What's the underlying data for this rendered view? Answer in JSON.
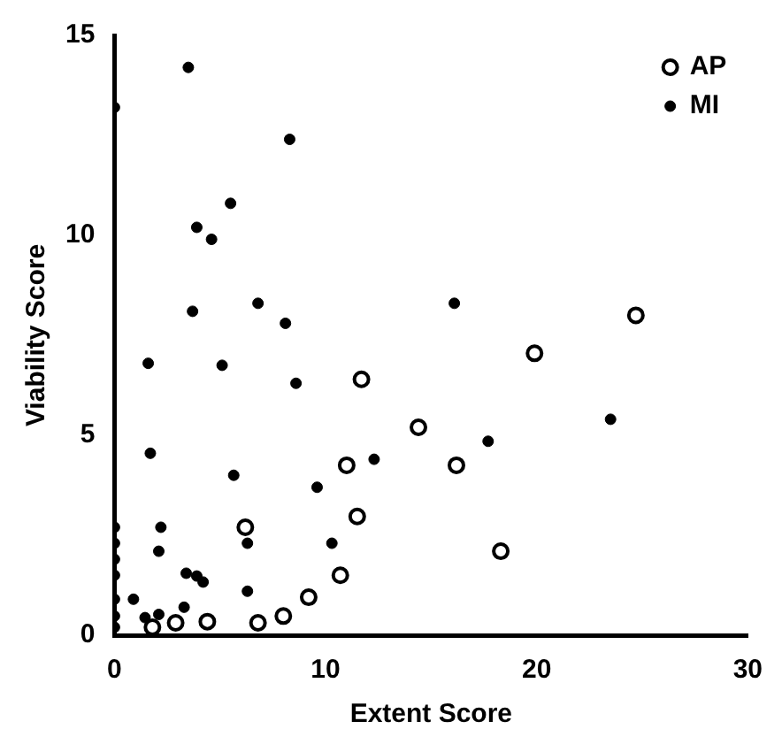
{
  "chart_data": {
    "type": "scatter",
    "xlabel": "Extent Score",
    "ylabel": "Viability Score",
    "xlim": [
      0,
      30
    ],
    "xticks": [
      0,
      10,
      20,
      30
    ],
    "ylim": [
      0,
      15
    ],
    "yticks": [
      0,
      5,
      10,
      15
    ],
    "grid": false,
    "legend": "top right",
    "marker": "circle",
    "series": [
      {
        "name": "AP",
        "color": "#000000",
        "x": [
          24.7,
          19.9,
          11.7,
          14.4,
          11.0,
          16.2,
          11.5,
          6.2,
          18.3,
          10.7,
          9.2,
          8.0,
          6.8,
          4.4,
          2.9,
          1.8
        ],
        "values": [
          8.0,
          7.05,
          6.4,
          5.2,
          4.25,
          4.25,
          2.97,
          2.7,
          2.1,
          1.5,
          0.95,
          0.48,
          0.31,
          0.34,
          0.31,
          0.2
        ]
      },
      {
        "name": "MI",
        "color": "#000000",
        "x": [
          0,
          3.5,
          8.3,
          5.5,
          3.9,
          4.6,
          3.7,
          6.8,
          8.1,
          1.6,
          5.1,
          8.6,
          1.7,
          12.3,
          5.65,
          9.6,
          2.2,
          6.3,
          2.1,
          10.3,
          3.4,
          3.9,
          4.2,
          6.3,
          3.3,
          0.9,
          1.45,
          2.1,
          16.1,
          23.5,
          17.7,
          0,
          0,
          0,
          0,
          0,
          0,
          0
        ],
        "values": [
          13.2,
          14.2,
          12.4,
          10.8,
          10.2,
          9.9,
          8.1,
          8.3,
          7.8,
          6.8,
          6.75,
          6.3,
          4.55,
          4.4,
          4.0,
          3.7,
          2.7,
          2.3,
          2.1,
          2.3,
          1.55,
          1.48,
          1.33,
          1.1,
          0.7,
          0.9,
          0.44,
          0.52,
          8.3,
          5.4,
          4.85,
          2.7,
          2.3,
          1.9,
          1.5,
          0.9,
          0.48,
          0.2
        ]
      }
    ]
  }
}
